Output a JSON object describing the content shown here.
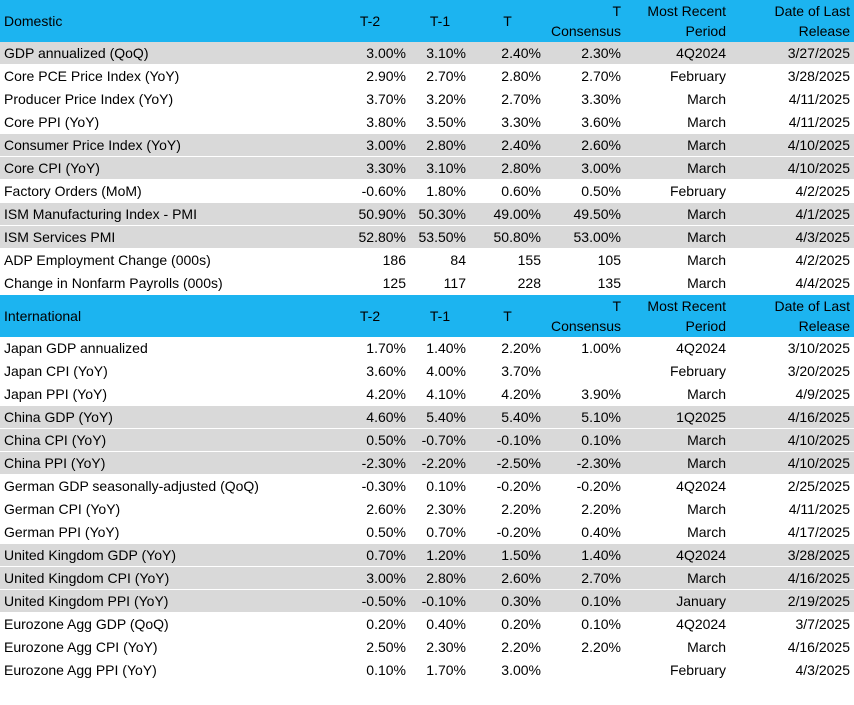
{
  "domestic": {
    "header": [
      "Domestic",
      "T-2",
      "T-1",
      "T",
      "T\nConsensus",
      "Most Recent\nPeriod",
      "Date of Last\nRelease"
    ],
    "rows": [
      [
        "GDP annualized (QoQ)",
        "3.00%",
        "3.10%",
        "2.40%",
        "2.30%",
        "4Q2024",
        "3/27/2025"
      ],
      [
        "Core PCE Price Index (YoY)",
        "2.90%",
        "2.70%",
        "2.80%",
        "2.70%",
        "February",
        "3/28/2025"
      ],
      [
        "Producer Price Index (YoY)",
        "3.70%",
        "3.20%",
        "2.70%",
        "3.30%",
        "March",
        "4/11/2025"
      ],
      [
        "Core PPI (YoY)",
        "3.80%",
        "3.50%",
        "3.30%",
        "3.60%",
        "March",
        "4/11/2025"
      ],
      [
        "Consumer Price Index (YoY)",
        "3.00%",
        "2.80%",
        "2.40%",
        "2.60%",
        "March",
        "4/10/2025"
      ],
      [
        "Core CPI  (YoY)",
        "3.30%",
        "3.10%",
        "2.80%",
        "3.00%",
        "March",
        "4/10/2025"
      ],
      [
        "Factory Orders (MoM)",
        "-0.60%",
        "1.80%",
        "0.60%",
        "0.50%",
        "February",
        "4/2/2025"
      ],
      [
        "ISM Manufacturing Index - PMI",
        "50.90%",
        "50.30%",
        "49.00%",
        "49.50%",
        "March",
        "4/1/2025"
      ],
      [
        "ISM Services PMI",
        "52.80%",
        "53.50%",
        "50.80%",
        "53.00%",
        "March",
        "4/3/2025"
      ],
      [
        "ADP Employment Change (000s)",
        "186",
        "84",
        "155",
        "105",
        "March",
        "4/2/2025"
      ],
      [
        "Change in Nonfarm Payrolls (000s)",
        "125",
        "117",
        "228",
        "135",
        "March",
        "4/4/2025"
      ]
    ]
  },
  "international": {
    "header": [
      "International",
      "T-2",
      "T-1",
      "T",
      "T\nConsensus",
      "Most Recent\nPeriod",
      "Date of Last\nRelease"
    ],
    "rows": [
      [
        "Japan GDP annualized",
        "1.70%",
        "1.40%",
        "2.20%",
        "1.00%",
        "4Q2024",
        "3/10/2025"
      ],
      [
        "Japan CPI (YoY)",
        "3.60%",
        "4.00%",
        "3.70%",
        null,
        "February",
        "3/20/2025"
      ],
      [
        "Japan PPI (YoY)",
        "4.20%",
        "4.10%",
        "4.20%",
        "3.90%",
        "March",
        "4/9/2025"
      ],
      [
        "China GDP (YoY)",
        "4.60%",
        "5.40%",
        "5.40%",
        "5.10%",
        "1Q2025",
        "4/16/2025"
      ],
      [
        "China CPI (YoY)",
        "0.50%",
        "-0.70%",
        "-0.10%",
        "0.10%",
        "March",
        "4/10/2025"
      ],
      [
        "China PPI (YoY)",
        "-2.30%",
        "-2.20%",
        "-2.50%",
        "-2.30%",
        "March",
        "4/10/2025"
      ],
      [
        "German GDP seasonally-adjusted (QoQ)",
        "-0.30%",
        "0.10%",
        "-0.20%",
        "-0.20%",
        "4Q2024",
        "2/25/2025"
      ],
      [
        "German CPI (YoY)",
        "2.60%",
        "2.30%",
        "2.20%",
        "2.20%",
        "March",
        "4/11/2025"
      ],
      [
        "German PPI (YoY)",
        "0.50%",
        "0.70%",
        "-0.20%",
        "0.40%",
        "March",
        "4/17/2025"
      ],
      [
        "United Kingdom GDP (YoY)",
        "0.70%",
        "1.20%",
        "1.50%",
        "1.40%",
        "4Q2024",
        "3/28/2025"
      ],
      [
        "United Kingdom CPI (YoY)",
        "3.00%",
        "2.80%",
        "2.60%",
        "2.70%",
        "March",
        "4/16/2025"
      ],
      [
        "United Kingdom  PPI (YoY)",
        "-0.50%",
        "-0.10%",
        "0.30%",
        "0.10%",
        "January",
        "2/19/2025"
      ],
      [
        "Eurozone Agg GDP (QoQ)",
        "0.20%",
        "0.40%",
        "0.20%",
        "0.10%",
        "4Q2024",
        "3/7/2025"
      ],
      [
        "Eurozone Agg CPI (YoY)",
        "2.50%",
        "2.30%",
        "2.20%",
        "2.20%",
        "March",
        "4/16/2025"
      ],
      [
        "Eurozone Agg PPI (YoY)",
        "0.10%",
        "1.70%",
        "3.00%",
        null,
        "February",
        "4/3/2025"
      ]
    ]
  }
}
